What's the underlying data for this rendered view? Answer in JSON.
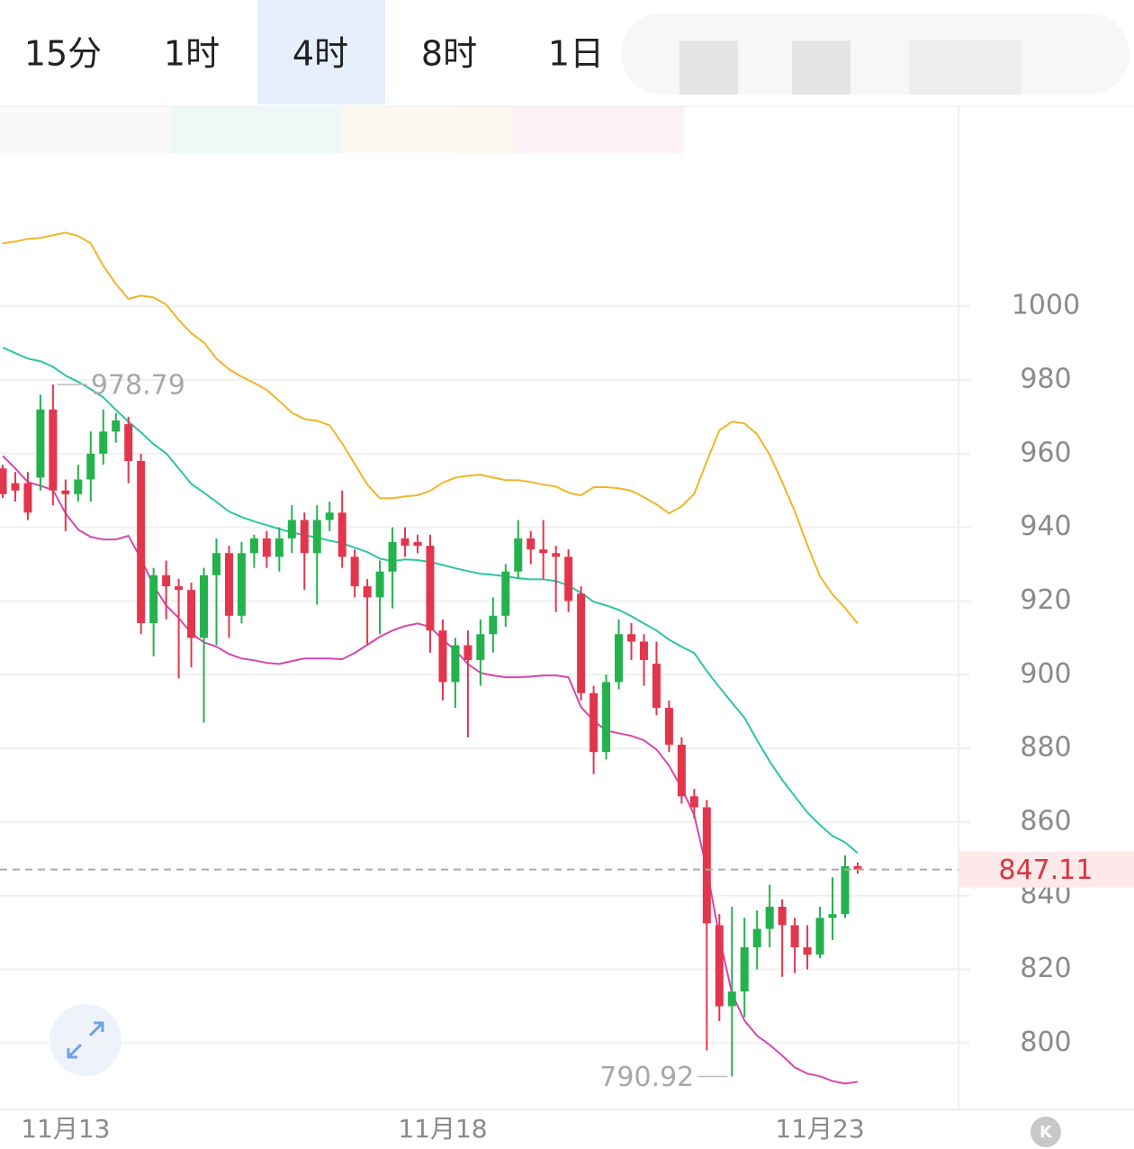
{
  "tabs": [
    "15分",
    "1时",
    "4时",
    "8时",
    "1日"
  ],
  "selected_tab": "4时",
  "corner_badge": "K",
  "chart_data": {
    "type": "candlestick",
    "categories": [
      null,
      null,
      null,
      null,
      null,
      "11月13",
      null,
      null,
      null,
      null,
      null,
      null,
      null,
      null,
      null,
      null,
      null,
      null,
      null,
      null,
      null,
      null,
      null,
      null,
      null,
      null,
      null,
      null,
      null,
      null,
      null,
      null,
      null,
      null,
      null,
      "11月18",
      null,
      null,
      null,
      null,
      null,
      null,
      null,
      null,
      null,
      null,
      null,
      null,
      null,
      null,
      null,
      null,
      null,
      null,
      null,
      null,
      null,
      null,
      null,
      null,
      null,
      null,
      null,
      null,
      null,
      "11月23",
      null,
      null,
      null
    ],
    "open": [
      956,
      952,
      952,
      953.5,
      972,
      950,
      949,
      953,
      960,
      966,
      968,
      958,
      914,
      927,
      924,
      923,
      910,
      927,
      933,
      916,
      933,
      937,
      932,
      937,
      942,
      933,
      942,
      944,
      932,
      924,
      921,
      928,
      937,
      936,
      935,
      912,
      898,
      908,
      904,
      911,
      916,
      928,
      937,
      934,
      933,
      932,
      922,
      895,
      879,
      898,
      911,
      909,
      903,
      891,
      881,
      867,
      864,
      832,
      810,
      814,
      826,
      831,
      837,
      832,
      826,
      824,
      834,
      835,
      848
    ],
    "high": [
      957,
      955,
      955,
      976,
      978.79,
      953,
      957,
      966,
      972,
      971,
      970,
      960,
      929,
      931,
      926,
      925,
      929,
      937,
      935,
      936,
      938,
      939,
      940,
      946,
      944,
      946,
      947,
      950,
      934,
      926,
      931,
      940,
      940,
      938,
      938,
      915,
      910,
      912,
      915,
      921,
      930,
      942,
      939,
      942,
      935,
      934,
      924,
      897,
      900,
      915,
      914,
      911,
      909,
      893,
      883,
      869,
      866,
      835,
      837,
      834,
      836,
      843,
      839,
      834,
      832,
      837,
      845,
      851,
      849
    ],
    "low": [
      948,
      947,
      942,
      950,
      946,
      939,
      947,
      947,
      957,
      963,
      952,
      911,
      905,
      915,
      899,
      902,
      887,
      908,
      910,
      914,
      929,
      929,
      928,
      933,
      923,
      919,
      939,
      929,
      921,
      908,
      911,
      918,
      932,
      933,
      906,
      893,
      891,
      883,
      897,
      906,
      913,
      926,
      930,
      926,
      917,
      917,
      893,
      873,
      877,
      896,
      904,
      897,
      889,
      879,
      865,
      861,
      798,
      806,
      790.92,
      807,
      820,
      826,
      818,
      819,
      820,
      823,
      828,
      834,
      846
    ],
    "close": [
      949,
      950,
      944,
      972,
      950,
      949,
      953,
      960,
      966,
      969,
      958,
      914,
      927,
      924,
      923,
      910,
      927,
      933,
      916,
      933,
      937,
      932,
      937,
      942,
      933,
      942,
      944,
      932,
      924,
      921,
      928,
      936,
      935,
      935,
      912,
      898,
      908,
      904,
      911,
      916,
      928,
      937,
      934,
      933,
      932,
      920,
      895,
      879,
      898,
      911,
      909,
      904,
      891,
      881,
      867,
      864,
      832.5,
      810,
      814,
      826,
      831,
      837,
      832,
      826,
      824,
      834,
      835,
      848,
      847.11
    ],
    "up_color": "#24b24d",
    "down_color": "#e3364c",
    "lines": [
      {
        "color": "#f0b52a",
        "values": [
          1017.1,
          1017.6,
          1018.3,
          1018.6,
          1019.3,
          1020,
          1019.1,
          1017.1,
          1011,
          1006.1,
          1002,
          1002.9,
          1002.4,
          1000.5,
          996.3,
          992.7,
          990.2,
          985.8,
          982.9,
          980.9,
          979.2,
          977.3,
          974.3,
          971.1,
          969.4,
          968.9,
          967.7,
          962.8,
          957.2,
          951.6,
          947.9,
          947.9,
          948.4,
          948.7,
          949.9,
          952.1,
          953.5,
          954,
          954.3,
          953.5,
          952.8,
          952.8,
          952.3,
          951.6,
          951.1,
          949.4,
          948.7,
          950.9,
          950.9,
          950.6,
          949.9,
          948.2,
          946.2,
          943.8,
          945.7,
          949.1,
          957.9,
          966.3,
          968.7,
          968.2,
          965.3,
          959.7,
          952.3,
          944.3,
          935.2,
          926.7,
          921.8,
          918.1,
          913.9
        ]
      },
      {
        "color": "#2ec4a6",
        "values": [
          988.8,
          987.3,
          985.8,
          985.1,
          983.6,
          981.2,
          979.5,
          977.5,
          975.3,
          971.9,
          968.7,
          965.8,
          962.6,
          960.1,
          956,
          951.8,
          949.4,
          946.9,
          944.3,
          942.8,
          941.6,
          940.6,
          939.6,
          938.6,
          937.9,
          937.2,
          936.4,
          935.7,
          934.5,
          933.3,
          931.5,
          930.8,
          931.3,
          931.1,
          930.6,
          929.8,
          928.9,
          928.1,
          927.4,
          927.1,
          926.7,
          926.2,
          925.9,
          925.9,
          925.4,
          924.2,
          922.2,
          919.8,
          918.8,
          917.6,
          915.9,
          913.9,
          912,
          909.5,
          907.6,
          905.9,
          901,
          896.6,
          892.4,
          888.3,
          882.2,
          876.5,
          871.4,
          867,
          862.6,
          859.2,
          856.2,
          854.5,
          851.6
        ]
      },
      {
        "color": "#d646b0",
        "values": [
          959.4,
          956,
          952.3,
          951.3,
          950.1,
          943.8,
          939.4,
          937.4,
          936.7,
          936.7,
          937.7,
          931.5,
          924.2,
          918.8,
          915.4,
          911.2,
          908.8,
          907.6,
          905.6,
          904.4,
          903.9,
          903.2,
          902.9,
          903.7,
          904.4,
          904.4,
          904.4,
          904.2,
          905.9,
          908.1,
          910.3,
          912,
          913.2,
          913.9,
          913,
          909.5,
          906.6,
          902.9,
          900.5,
          899.8,
          899.3,
          899.3,
          899.5,
          899.8,
          899.8,
          899.3,
          891.2,
          887.5,
          884.8,
          884.1,
          883.4,
          882.2,
          879.7,
          875.3,
          869.2,
          861.9,
          847.2,
          828.9,
          813.5,
          806.1,
          802,
          799.5,
          796.6,
          793.4,
          791.7,
          791,
          789.7,
          789,
          789.5
        ]
      }
    ],
    "annotations": [
      {
        "text": "978.79",
        "value": 978.79,
        "side": "high"
      },
      {
        "text": "790.92",
        "value": 790.92,
        "side": "low"
      }
    ],
    "last_price": {
      "value": 847.11,
      "label": "847.11",
      "color": "#d9363e"
    },
    "ylim": [
      782,
      1041.6
    ],
    "yticks": [
      800,
      820,
      840,
      860,
      880,
      900,
      920,
      940,
      960,
      980,
      1000
    ],
    "grid": true
  }
}
